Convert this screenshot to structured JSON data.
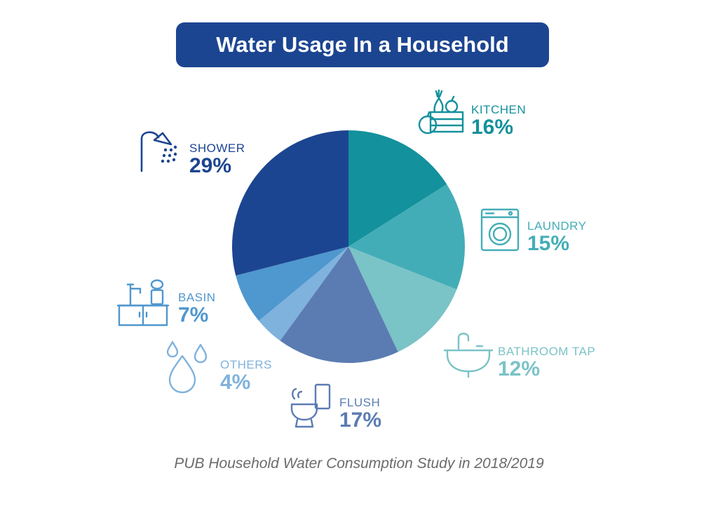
{
  "chart_data": {
    "type": "pie",
    "title": "Water Usage In a Household",
    "source": "PUB Household Water Consumption Study in 2018/2019",
    "slices": [
      {
        "label": "KITCHEN",
        "value": 16,
        "display": "16%",
        "color": "#13919c",
        "icon": "kitchen-icon"
      },
      {
        "label": "LAUNDRY",
        "value": 15,
        "display": "15%",
        "color": "#43adb7",
        "icon": "washing-machine-icon"
      },
      {
        "label": "BATHROOM TAP",
        "value": 12,
        "display": "12%",
        "color": "#7ac3c7",
        "icon": "sink-tap-icon"
      },
      {
        "label": "FLUSH",
        "value": 17,
        "display": "17%",
        "color": "#5b7cb2",
        "icon": "toilet-icon"
      },
      {
        "label": "OTHERS",
        "value": 4,
        "display": "4%",
        "color": "#7fb2dd",
        "icon": "water-drops-icon"
      },
      {
        "label": "BASIN",
        "value": 7,
        "display": "7%",
        "color": "#4f97cf",
        "icon": "basin-icon"
      },
      {
        "label": "SHOWER",
        "value": 29,
        "display": "29%",
        "color": "#1c4591",
        "icon": "shower-icon"
      }
    ]
  }
}
